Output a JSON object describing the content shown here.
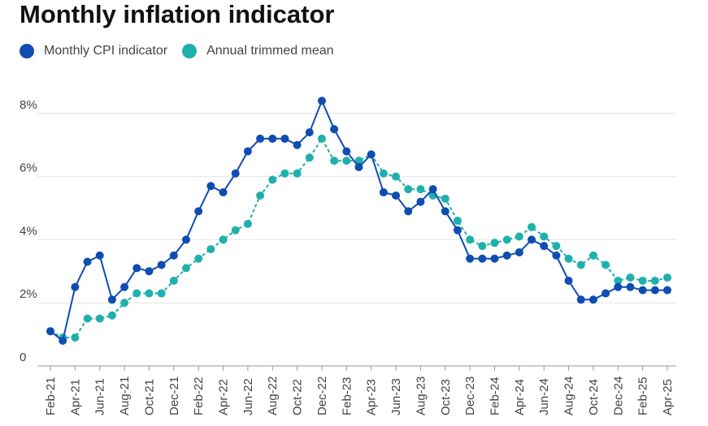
{
  "title": "Monthly inflation indicator",
  "legend": [
    {
      "label": "Monthly CPI indicator",
      "color": "#0f4db3"
    },
    {
      "label": "Annual trimmed mean",
      "color": "#1fb0ac"
    }
  ],
  "chart_data": {
    "type": "line",
    "title": "Monthly inflation indicator",
    "xlabel": "",
    "ylabel": "",
    "ylim": [
      0,
      8.6
    ],
    "y_ticks": [
      {
        "value": 0,
        "label": "0"
      },
      {
        "value": 2,
        "label": "2%"
      },
      {
        "value": 4,
        "label": "4%"
      },
      {
        "value": 6,
        "label": "6%"
      },
      {
        "value": 8,
        "label": "8%"
      }
    ],
    "grid": true,
    "legend_position": "top-left",
    "x": [
      "Feb-21",
      "Mar-21",
      "Apr-21",
      "May-21",
      "Jun-21",
      "Jul-21",
      "Aug-21",
      "Sep-21",
      "Oct-21",
      "Nov-21",
      "Dec-21",
      "Jan-22",
      "Feb-22",
      "Mar-22",
      "Apr-22",
      "May-22",
      "Jun-22",
      "Jul-22",
      "Aug-22",
      "Sep-22",
      "Oct-22",
      "Nov-22",
      "Dec-22",
      "Jan-23",
      "Feb-23",
      "Mar-23",
      "Apr-23",
      "May-23",
      "Jun-23",
      "Jul-23",
      "Aug-23",
      "Sep-23",
      "Oct-23",
      "Nov-23",
      "Dec-23",
      "Jan-24",
      "Feb-24",
      "Mar-24",
      "Apr-24",
      "May-24",
      "Jun-24",
      "Jul-24",
      "Aug-24",
      "Sep-24",
      "Oct-24",
      "Nov-24",
      "Dec-24",
      "Jan-25",
      "Feb-25",
      "Mar-25",
      "Apr-25"
    ],
    "x_tick_labels": [
      "Feb-21",
      "Apr-21",
      "Jun-21",
      "Aug-21",
      "Oct-21",
      "Dec-21",
      "Feb-22",
      "Apr-22",
      "Jun-22",
      "Aug-22",
      "Oct-22",
      "Dec-22",
      "Feb-23",
      "Apr-23",
      "Jun-23",
      "Aug-23",
      "Oct-23",
      "Dec-23",
      "Feb-24",
      "Apr-24",
      "Jun-24",
      "Aug-24",
      "Oct-24",
      "Dec-24",
      "Feb-25",
      "Apr-25"
    ],
    "series": [
      {
        "name": "Monthly CPI indicator",
        "color": "#0f4db3",
        "values": [
          1.1,
          0.8,
          2.5,
          3.3,
          3.5,
          2.1,
          2.5,
          3.1,
          3.0,
          3.2,
          3.5,
          4.0,
          4.9,
          5.7,
          5.5,
          6.1,
          6.8,
          7.2,
          7.2,
          7.2,
          7.0,
          7.4,
          8.4,
          7.5,
          6.8,
          6.3,
          6.7,
          5.5,
          5.4,
          4.9,
          5.2,
          5.6,
          4.9,
          4.3,
          3.4,
          3.4,
          3.4,
          3.5,
          3.6,
          4.0,
          3.8,
          3.5,
          2.7,
          2.1,
          2.1,
          2.3,
          2.5,
          2.5,
          2.4,
          2.4,
          2.4
        ]
      },
      {
        "name": "Annual trimmed mean",
        "color": "#1fb0ac",
        "values": [
          1.1,
          0.9,
          0.9,
          1.5,
          1.5,
          1.6,
          2.0,
          2.3,
          2.3,
          2.3,
          2.7,
          3.1,
          3.4,
          3.7,
          4.0,
          4.3,
          4.5,
          5.4,
          5.9,
          6.1,
          6.1,
          6.6,
          7.2,
          6.5,
          6.5,
          6.5,
          6.7,
          6.1,
          6.0,
          5.6,
          5.6,
          5.4,
          5.3,
          4.6,
          4.0,
          3.8,
          3.9,
          4.0,
          4.1,
          4.4,
          4.1,
          3.8,
          3.4,
          3.2,
          3.5,
          3.2,
          2.7,
          2.8,
          2.7,
          2.7,
          2.8
        ]
      }
    ]
  }
}
